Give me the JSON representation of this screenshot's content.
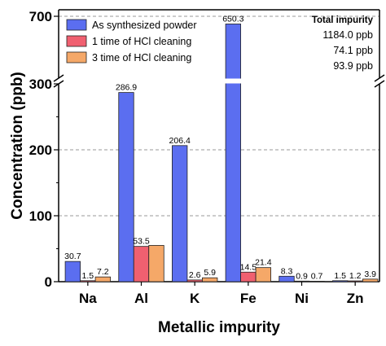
{
  "chart_data": {
    "type": "bar",
    "xlabel": "Metallic impurity",
    "ylabel": "Concentration (ppb)",
    "categories": [
      "Na",
      "Al",
      "K",
      "Fe",
      "Ni",
      "Zn"
    ],
    "series": [
      {
        "name": "As synthesized powder",
        "color": "#5b6ef0",
        "values": [
          30.7,
          286.9,
          206.4,
          650.3,
          8.3,
          1.5
        ]
      },
      {
        "name": "1 time of HCl cleaning",
        "color": "#f06070",
        "values": [
          1.5,
          53.5,
          2.6,
          14.5,
          0.9,
          1.2
        ]
      },
      {
        "name": "3 time of HCl cleaning",
        "color": "#f5a868",
        "values": [
          7.2,
          55,
          5.9,
          21.4,
          0.7,
          3.9
        ]
      }
    ],
    "data_labels": [
      [
        "30.7",
        "1.5",
        "7.2"
      ],
      [
        "286.9",
        "53.5",
        ""
      ],
      [
        "206.4",
        "2.6",
        "5.9"
      ],
      [
        "650.3",
        "14.5",
        "21.4"
      ],
      [
        "8.3",
        "0.9",
        "0.7"
      ],
      [
        "1.5",
        "1.2",
        "3.9"
      ]
    ],
    "y_axis": {
      "broken": true,
      "lower_range": [
        0,
        300
      ],
      "upper_range": [
        300,
        700
      ],
      "tick_labels": [
        "0",
        "100",
        "200",
        "300",
        "700"
      ]
    },
    "grid": "dashed horizontal",
    "legend_position": "top-left",
    "total_impurity": {
      "title": "Total impurity",
      "values": [
        "1184.0 ppb",
        "74.1 ppb",
        "93.9 ppb"
      ]
    }
  }
}
